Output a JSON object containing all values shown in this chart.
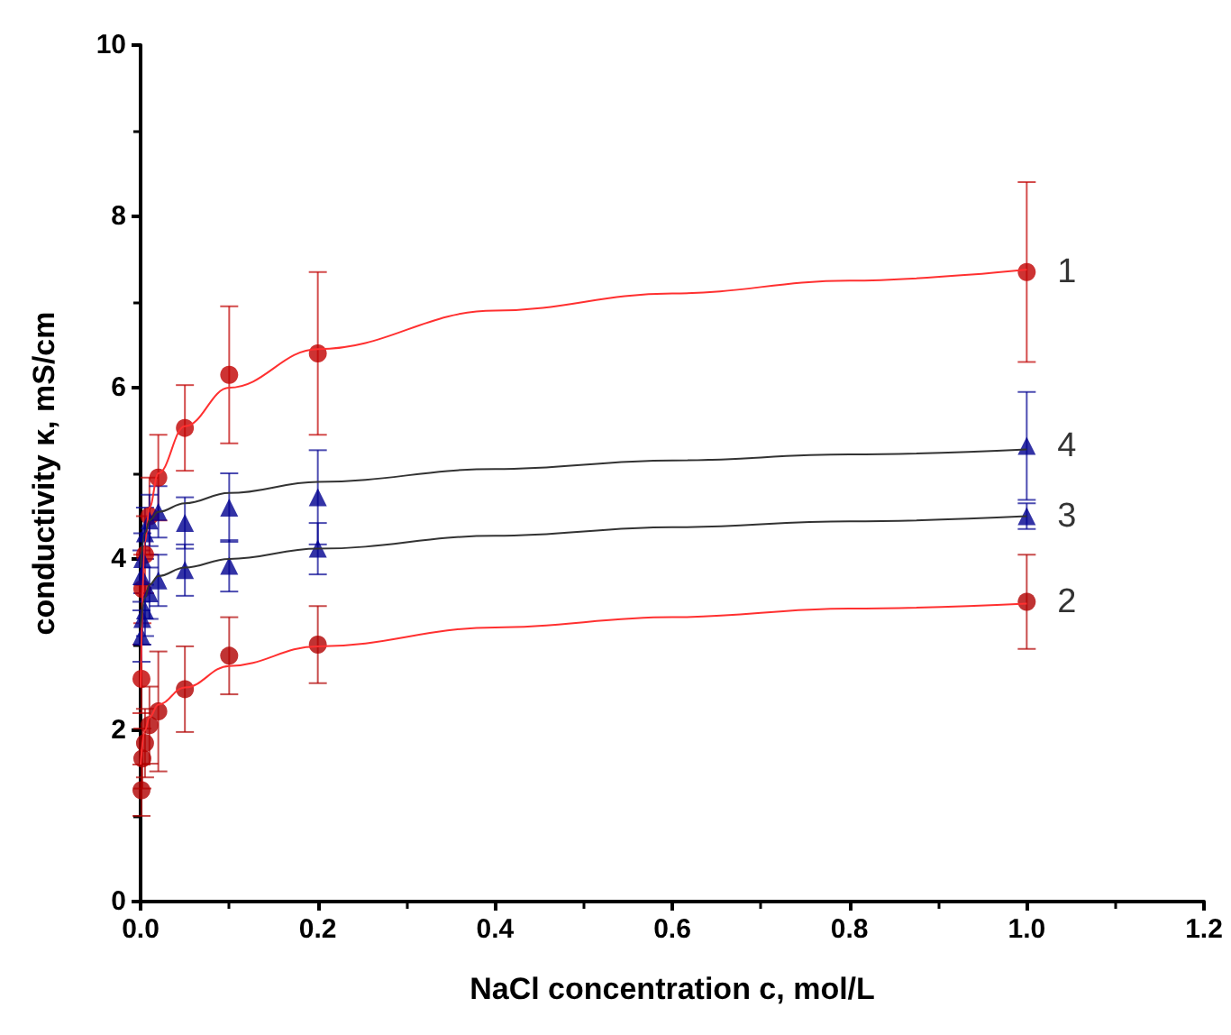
{
  "chart_data": {
    "type": "scatter",
    "xlabel": "NaCl concentration c, mol/L",
    "ylabel": "conductivity κ, mS/cm",
    "xlim": [
      0,
      1.2
    ],
    "xticks": [
      {
        "value": 0,
        "label": "0.0"
      },
      0.2,
      0.4,
      0.6,
      0.8,
      {
        "value": 1,
        "label": "1.0"
      },
      1.2
    ],
    "ylim": [
      0,
      10
    ],
    "yticks": [
      0,
      2,
      4,
      6,
      8,
      10
    ],
    "grid": false,
    "legend": false,
    "series": [
      {
        "name": "1",
        "color": "#c00000",
        "marker": "circle",
        "x": [
          0.001,
          0.002,
          0.005,
          0.01,
          0.02,
          0.05,
          0.1,
          0.2,
          1.0
        ],
        "values": [
          2.6,
          3.65,
          4.05,
          4.5,
          4.95,
          5.53,
          6.15,
          6.4,
          7.35
        ],
        "errors": [
          0.4,
          0.4,
          0.45,
          0.45,
          0.5,
          0.5,
          0.8,
          0.95,
          1.05
        ]
      },
      {
        "name": "2",
        "color": "#b00000",
        "marker": "circle",
        "x": [
          0.001,
          0.002,
          0.005,
          0.01,
          0.02,
          0.05,
          0.1,
          0.2,
          1.0
        ],
        "values": [
          1.3,
          1.67,
          1.85,
          2.06,
          2.22,
          2.48,
          2.87,
          3.0,
          3.5
        ],
        "errors": [
          0.3,
          0.35,
          0.4,
          0.45,
          0.7,
          0.5,
          0.45,
          0.45,
          0.55
        ]
      },
      {
        "name": "3",
        "color": "#000090",
        "marker": "triangle",
        "x": [
          0.001,
          0.002,
          0.005,
          0.01,
          0.02,
          0.05,
          0.1,
          0.2,
          1.0
        ],
        "values": [
          3.1,
          3.3,
          3.4,
          3.6,
          3.75,
          3.87,
          3.92,
          4.12,
          4.5
        ],
        "errors": [
          0.3,
          0.3,
          0.3,
          0.3,
          0.3,
          0.3,
          0.3,
          0.3,
          0.15
        ]
      },
      {
        "name": "4",
        "color": "#000090",
        "marker": "triangle",
        "x": [
          0.001,
          0.002,
          0.005,
          0.01,
          0.02,
          0.05,
          0.1,
          0.2,
          1.0
        ],
        "values": [
          3.8,
          4.0,
          4.3,
          4.45,
          4.55,
          4.42,
          4.6,
          4.72,
          5.32
        ],
        "errors": [
          0.3,
          0.3,
          0.3,
          0.3,
          0.3,
          0.3,
          0.4,
          0.55,
          0.63
        ]
      },
      {
        "type": "line",
        "color": "#ff3030",
        "marker": "none",
        "x": [
          0,
          0.005,
          0.01,
          0.02,
          0.05,
          0.1,
          0.2,
          0.4,
          0.6,
          0.8,
          1.0
        ],
        "values": [
          2.5,
          4.2,
          4.6,
          5.0,
          5.55,
          6.0,
          6.45,
          6.9,
          7.1,
          7.25,
          7.38
        ]
      },
      {
        "type": "line",
        "color": "#ff3030",
        "marker": "none",
        "x": [
          0,
          0.005,
          0.01,
          0.02,
          0.05,
          0.1,
          0.2,
          0.4,
          0.6,
          0.8,
          1.0
        ],
        "values": [
          1.6,
          2.0,
          2.15,
          2.3,
          2.5,
          2.75,
          2.98,
          3.2,
          3.32,
          3.42,
          3.48
        ]
      },
      {
        "type": "line",
        "color": "#333333",
        "marker": "none",
        "x": [
          0,
          0.005,
          0.01,
          0.02,
          0.05,
          0.1,
          0.2,
          0.4,
          0.6,
          0.8,
          1.0
        ],
        "values": [
          3.2,
          3.55,
          3.7,
          3.8,
          3.9,
          4.0,
          4.12,
          4.27,
          4.37,
          4.44,
          4.5
        ]
      },
      {
        "type": "line",
        "color": "#333333",
        "marker": "none",
        "x": [
          0,
          0.005,
          0.01,
          0.02,
          0.05,
          0.1,
          0.2,
          0.4,
          0.6,
          0.8,
          1.0
        ],
        "values": [
          3.9,
          4.3,
          4.45,
          4.55,
          4.65,
          4.77,
          4.9,
          5.05,
          5.15,
          5.22,
          5.28
        ]
      }
    ]
  }
}
